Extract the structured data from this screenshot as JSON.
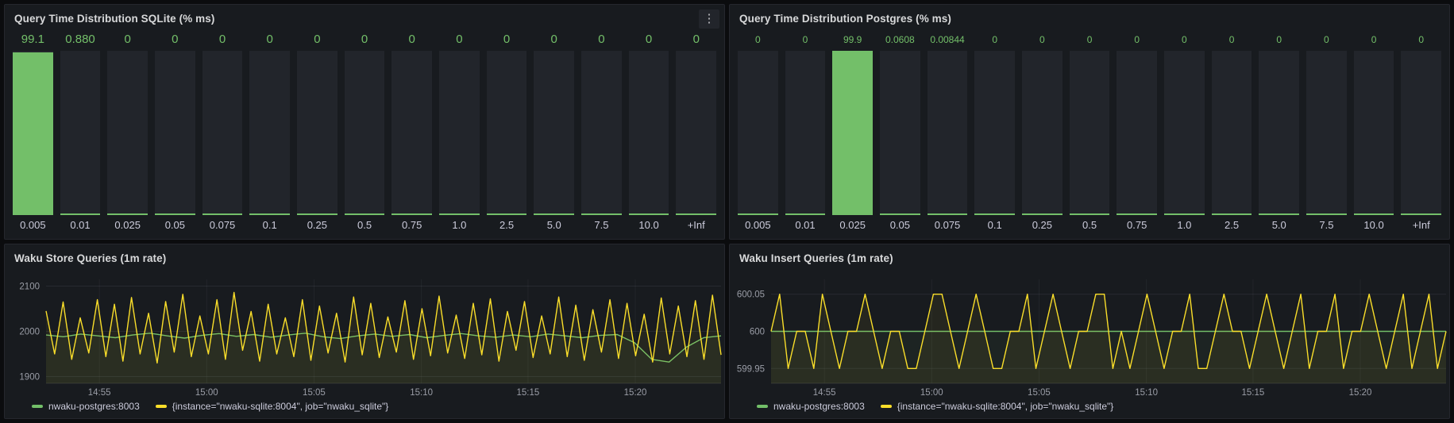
{
  "theme": {
    "page_bg": "#0b0c0e",
    "panel_bg": "#181b1f",
    "panel_border": "#25272e",
    "text": "#ccccdc",
    "title_text": "#d8d9da",
    "green": "#73bf69",
    "yellow": "#fade2a",
    "bar_track": "#22252b"
  },
  "icons": {
    "kebab": "⋮"
  },
  "chart_data": [
    {
      "type": "bar",
      "title": "Query Time Distribution SQLite (% ms)",
      "categories": [
        "0.005",
        "0.01",
        "0.025",
        "0.05",
        "0.075",
        "0.1",
        "0.25",
        "0.5",
        "0.75",
        "1.0",
        "2.5",
        "5.0",
        "7.5",
        "10.0",
        "+Inf"
      ],
      "values": [
        99.1,
        0.88,
        0,
        0,
        0,
        0,
        0,
        0,
        0,
        0,
        0,
        0,
        0,
        0,
        0
      ],
      "value_labels": [
        "99.1",
        "0.880",
        "0",
        "0",
        "0",
        "0",
        "0",
        "0",
        "0",
        "0",
        "0",
        "0",
        "0",
        "0",
        "0"
      ],
      "xlabel": "",
      "ylabel": "",
      "ylim": [
        0,
        100
      ],
      "bar_color": "#73bf69"
    },
    {
      "type": "bar",
      "title": "Query Time Distribution Postgres (% ms)",
      "categories": [
        "0.005",
        "0.01",
        "0.025",
        "0.05",
        "0.075",
        "0.1",
        "0.25",
        "0.5",
        "0.75",
        "1.0",
        "2.5",
        "5.0",
        "7.5",
        "10.0",
        "+Inf"
      ],
      "values": [
        0,
        0,
        99.9,
        0.0608,
        0.00844,
        0,
        0,
        0,
        0,
        0,
        0,
        0,
        0,
        0,
        0
      ],
      "value_labels": [
        "0",
        "0",
        "99.9",
        "0.0608",
        "0.00844",
        "0",
        "0",
        "0",
        "0",
        "0",
        "0",
        "0",
        "0",
        "0",
        "0"
      ],
      "xlabel": "",
      "ylabel": "",
      "ylim": [
        0,
        100
      ],
      "bar_color": "#73bf69"
    },
    {
      "type": "line",
      "title": "Waku Store Queries (1m rate)",
      "ylim": [
        1885,
        2115
      ],
      "yticks": [
        1900,
        2000,
        2100
      ],
      "xticks": [
        {
          "label": "14:55",
          "pos": 0.079
        },
        {
          "label": "15:00",
          "pos": 0.238
        },
        {
          "label": "15:05",
          "pos": 0.397
        },
        {
          "label": "15:10",
          "pos": 0.556
        },
        {
          "label": "15:15",
          "pos": 0.714
        },
        {
          "label": "15:20",
          "pos": 0.873
        }
      ],
      "legend_position": "bottom",
      "series": [
        {
          "name": "nwaku-postgres:8003",
          "color": "#73bf69",
          "values": [
            1992,
            1988,
            1994,
            1990,
            1986,
            1992,
            1996,
            1990,
            1985,
            1991,
            1995,
            1989,
            1993,
            1987,
            1992,
            1996,
            1988,
            1984,
            1990,
            1994,
            1989,
            1993,
            1986,
            1991,
            1995,
            1990,
            1987,
            1992,
            1988,
            1994,
            1990,
            1986,
            1991,
            1993,
            1975,
            1938,
            1932,
            1965,
            1986,
            1990
          ]
        },
        {
          "name": "{instance=\"nwaku-sqlite:8004\", job=\"nwaku_sqlite\"}",
          "color": "#fade2a",
          "values": [
            2045,
            1950,
            2065,
            1938,
            2030,
            1952,
            2070,
            1944,
            2060,
            1934,
            2075,
            1950,
            2040,
            1930,
            2066,
            1954,
            2082,
            1944,
            2034,
            1950,
            2070,
            1938,
            2086,
            1958,
            2044,
            1934,
            2060,
            1950,
            2030,
            1944,
            2070,
            1936,
            2056,
            1952,
            2040,
            1932,
            2076,
            1948,
            2062,
            1942,
            2032,
            1954,
            2068,
            1938,
            2050,
            1946,
            2078,
            1952,
            2036,
            1940,
            2062,
            1948,
            2072,
            1934,
            2044,
            1958,
            2066,
            1942,
            2034,
            1950,
            2076,
            1944,
            2058,
            1936,
            2048,
            1954,
            2070,
            1940,
            2062,
            1946,
            2038,
            1932,
            2074,
            1950,
            2056,
            1944,
            2068,
            1938,
            2080,
            1948
          ]
        }
      ]
    },
    {
      "type": "line",
      "title": "Waku Insert Queries (1m rate)",
      "ylim": [
        599.93,
        600.07
      ],
      "yticks": [
        599.95,
        600,
        600.05
      ],
      "xticks": [
        {
          "label": "14:55",
          "pos": 0.079
        },
        {
          "label": "15:00",
          "pos": 0.238
        },
        {
          "label": "15:05",
          "pos": 0.397
        },
        {
          "label": "15:10",
          "pos": 0.556
        },
        {
          "label": "15:15",
          "pos": 0.714
        },
        {
          "label": "15:20",
          "pos": 0.873
        }
      ],
      "legend_position": "bottom",
      "series": [
        {
          "name": "nwaku-postgres:8003",
          "color": "#73bf69",
          "values": [
            600,
            600
          ]
        },
        {
          "name": "{instance=\"nwaku-sqlite:8004\", job=\"nwaku_sqlite\"}",
          "color": "#fade2a",
          "values": [
            600,
            600.05,
            599.95,
            600,
            600,
            599.95,
            600.05,
            600,
            599.95,
            600,
            600,
            600.05,
            600,
            599.95,
            600,
            600,
            599.95,
            599.95,
            600,
            600.05,
            600.05,
            600,
            599.95,
            600,
            600.05,
            600,
            599.95,
            599.95,
            600,
            600,
            600.05,
            599.95,
            600,
            600.05,
            600,
            599.95,
            600,
            600,
            600.05,
            600.05,
            599.95,
            600,
            599.95,
            600,
            600.05,
            600,
            599.95,
            600,
            600,
            600.05,
            599.95,
            599.95,
            600,
            600.05,
            600,
            600,
            599.95,
            600,
            600.05,
            600,
            599.95,
            600,
            600.05,
            599.95,
            600,
            600,
            600.05,
            599.95,
            600,
            600,
            600.05,
            600,
            599.95,
            600,
            600.05,
            599.95,
            600,
            600.05,
            599.95,
            600
          ]
        }
      ]
    }
  ]
}
